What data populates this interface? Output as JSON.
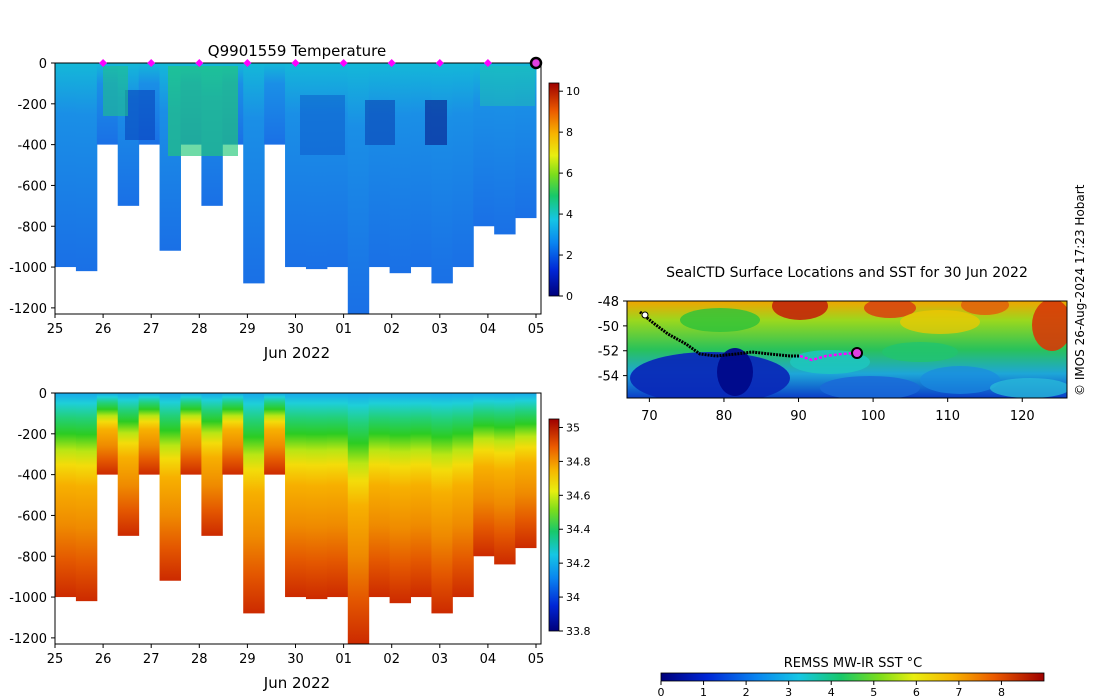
{
  "credit": "© IMOS 26-Aug-2024 17:23 Hobart",
  "chart_data": [
    {
      "type": "heatmap",
      "title": "Q9901559  Temperature",
      "xlabel": "Jun 2022",
      "x_tick_labels": [
        "25",
        "26",
        "27",
        "28",
        "29",
        "30",
        "01",
        "02",
        "03",
        "04",
        "05"
      ],
      "ylim": [
        -1230,
        0
      ],
      "y_ticks": [
        0,
        -200,
        -400,
        -600,
        -800,
        -1000,
        -1200
      ],
      "colorbar": {
        "min": 0,
        "max": 10.4,
        "ticks": [
          0,
          2,
          4,
          6,
          8,
          10
        ]
      },
      "surface_markers_x": [
        26,
        27,
        28,
        29,
        30,
        31,
        32,
        33,
        34
      ],
      "last_position_x": 35,
      "profile_max_depth": [
        -1000,
        -1020,
        -400,
        -700,
        -400,
        -920,
        -400,
        -700,
        -400,
        -1080,
        -400,
        -1000,
        -1010,
        -1000,
        -1230,
        -1000,
        -1030,
        -1000,
        -1080,
        -1000,
        -800,
        -840,
        -760
      ]
    },
    {
      "type": "heatmap",
      "title": "",
      "xlabel": "Jun 2022",
      "x_tick_labels": [
        "25",
        "26",
        "27",
        "28",
        "29",
        "30",
        "01",
        "02",
        "03",
        "04",
        "05"
      ],
      "ylim": [
        -1230,
        0
      ],
      "y_ticks": [
        0,
        -200,
        -400,
        -600,
        -800,
        -1000,
        -1200
      ],
      "colorbar": {
        "min": 33.8,
        "max": 35.05,
        "ticks": [
          33.8,
          34,
          34.2,
          34.4,
          34.6,
          34.8,
          35
        ]
      }
    },
    {
      "type": "heatmap",
      "title": "SealCTD Surface Locations and SST for 30 Jun 2022",
      "x_ticks": [
        70,
        80,
        90,
        100,
        110,
        120
      ],
      "y_ticks": [
        -48,
        -50,
        -52,
        -54
      ],
      "xlim": [
        67,
        126
      ],
      "ylim": [
        -55.8,
        -48
      ],
      "current_position": [
        98,
        -52.3
      ],
      "colorbar": {
        "label": "REMSS MW-IR SST °C",
        "min": 0,
        "max": 9,
        "ticks": [
          0,
          1,
          2,
          3,
          4,
          5,
          6,
          7,
          8
        ]
      }
    }
  ]
}
